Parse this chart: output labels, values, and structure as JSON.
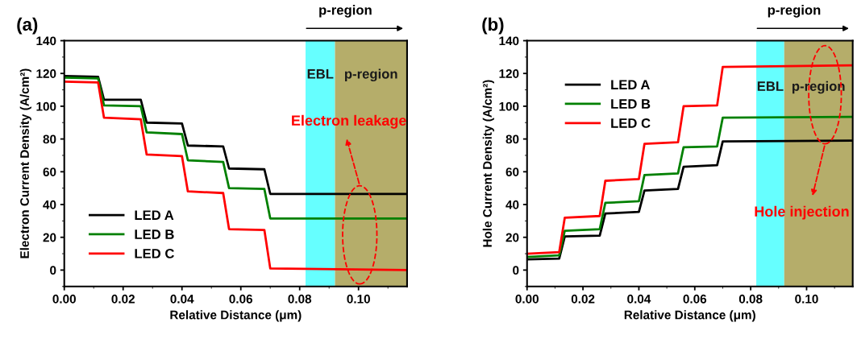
{
  "chart_data": [
    {
      "type": "line",
      "xlabel": "Relative Distance (μm)",
      "ylabel": "Electron Current Density (A/cm²)",
      "x": [
        0,
        0.0115,
        0.0135,
        0.026,
        0.028,
        0.04,
        0.042,
        0.054,
        0.056,
        0.068,
        0.07,
        0.1165
      ],
      "series": [
        {
          "name": "LED A",
          "color": "#000000",
          "values": [
            118.5,
            118,
            104,
            104,
            90,
            89.5,
            76,
            75.5,
            62,
            61.5,
            46.5,
            46.5
          ]
        },
        {
          "name": "LED B",
          "color": "#008000",
          "values": [
            117.5,
            117,
            100.5,
            100,
            84,
            83,
            67,
            66,
            50,
            49.5,
            31.5,
            31.5
          ]
        },
        {
          "name": "LED C",
          "color": "#ff0000",
          "values": [
            115,
            114.5,
            93,
            92,
            70.5,
            69.5,
            48,
            47,
            25,
            24.5,
            1,
            0
          ]
        }
      ],
      "xlim": [
        0,
        0.1165
      ],
      "xticks": [
        {
          "value": 0,
          "label": "0.00"
        },
        {
          "value": 0.02,
          "label": "0.02"
        },
        {
          "value": 0.04,
          "label": "0.04"
        },
        {
          "value": 0.06,
          "label": "0.06"
        },
        {
          "value": 0.08,
          "label": "0.08"
        },
        {
          "value": 0.1,
          "label": "0.10"
        }
      ],
      "ylim": [
        -10,
        140
      ],
      "yticks": [
        0,
        20,
        40,
        60,
        80,
        100,
        120,
        140
      ],
      "bands": [
        {
          "axis": "x",
          "from": 0.082,
          "to": 0.092,
          "label": "EBL",
          "color": "#66ffff"
        },
        {
          "axis": "x",
          "from": 0.092,
          "to": 0.1165,
          "label": "p-region",
          "color": "#b5ad6a"
        }
      ],
      "annotations": [
        "(a)",
        "p-region",
        "Electron leakage"
      ],
      "legend": "bottom left",
      "grid": false,
      "marker": "none",
      "line_style": "solid"
    },
    {
      "type": "line",
      "xlabel": "Relative Distance (μm)",
      "ylabel": "Hole Current Density (A/cm²)",
      "x": [
        0,
        0.0115,
        0.0135,
        0.026,
        0.028,
        0.04,
        0.042,
        0.054,
        0.056,
        0.068,
        0.07,
        0.1165
      ],
      "series": [
        {
          "name": "LED A",
          "color": "#000000",
          "values": [
            6.5,
            7,
            20.5,
            21,
            34.5,
            35.5,
            48.5,
            49.5,
            63,
            64,
            78.5,
            79
          ]
        },
        {
          "name": "LED B",
          "color": "#008000",
          "values": [
            8,
            9,
            24,
            25,
            41,
            42,
            58,
            59,
            75,
            75.5,
            93,
            93.5
          ]
        },
        {
          "name": "LED C",
          "color": "#ff0000",
          "values": [
            10,
            11,
            32,
            33,
            54.5,
            55.5,
            77,
            78,
            100,
            100.5,
            124,
            125
          ]
        }
      ],
      "xlim": [
        0,
        0.1165
      ],
      "xticks": [
        {
          "value": 0,
          "label": "0.00"
        },
        {
          "value": 0.02,
          "label": "0.02"
        },
        {
          "value": 0.04,
          "label": "0.04"
        },
        {
          "value": 0.06,
          "label": "0.06"
        },
        {
          "value": 0.08,
          "label": "0.08"
        },
        {
          "value": 0.1,
          "label": "0.10"
        }
      ],
      "ylim": [
        -10,
        140
      ],
      "yticks": [
        0,
        20,
        40,
        60,
        80,
        100,
        120,
        140
      ],
      "bands": [
        {
          "axis": "x",
          "from": 0.082,
          "to": 0.092,
          "label": "EBL",
          "color": "#66ffff"
        },
        {
          "axis": "x",
          "from": 0.092,
          "to": 0.1165,
          "label": "p-region",
          "color": "#b5ad6a"
        }
      ],
      "annotations": [
        "(b)",
        "p-region",
        "Hole injection"
      ],
      "legend": "top left",
      "grid": false,
      "marker": "none",
      "line_style": "solid"
    }
  ]
}
